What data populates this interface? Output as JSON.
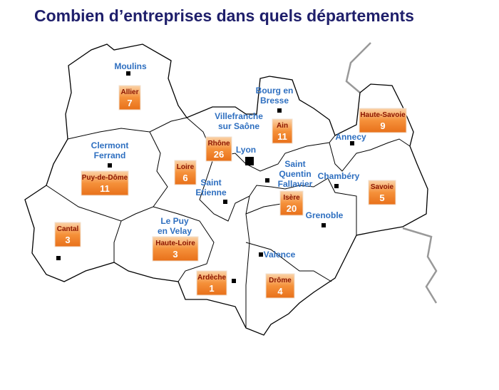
{
  "title": "Combien d’entreprises dans quels départements",
  "departments": [
    {
      "name": "Allier",
      "count": 7
    },
    {
      "name": "Puy-de-Dôme",
      "count": 11
    },
    {
      "name": "Loire",
      "count": 6
    },
    {
      "name": "Rhône",
      "count": 26
    },
    {
      "name": "Ain",
      "count": 11
    },
    {
      "name": "Haute-Savoie",
      "count": 9
    },
    {
      "name": "Savoie",
      "count": 5
    },
    {
      "name": "Isère",
      "count": 20
    },
    {
      "name": "Cantal",
      "count": 3
    },
    {
      "name": "Haute-Loire",
      "count": 3
    },
    {
      "name": "Ardèche",
      "count": 1
    },
    {
      "name": "Drôme",
      "count": 4
    }
  ],
  "cities": [
    {
      "lines": [
        "Moulins"
      ]
    },
    {
      "lines": [
        "Bourg en",
        "Bresse"
      ]
    },
    {
      "lines": [
        "Villefranche",
        "sur Saône"
      ]
    },
    {
      "lines": [
        "Lyon"
      ]
    },
    {
      "lines": [
        "Annecy"
      ]
    },
    {
      "lines": [
        "Clermont",
        "Ferrand"
      ]
    },
    {
      "lines": [
        "Saint",
        "Quentin",
        "Fallavier"
      ]
    },
    {
      "lines": [
        "Chambéry"
      ]
    },
    {
      "lines": [
        "Saint",
        "Etienne"
      ]
    },
    {
      "lines": [
        "Grenoble"
      ]
    },
    {
      "lines": [
        "Le Puy",
        "en Velay"
      ]
    },
    {
      "lines": [
        "Valence"
      ]
    }
  ]
}
